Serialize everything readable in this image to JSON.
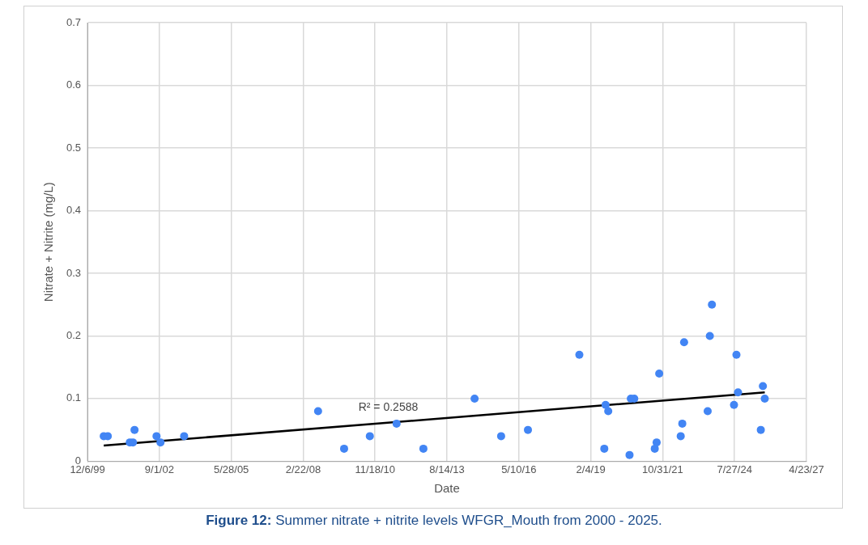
{
  "chart_data": {
    "type": "scatter",
    "xlabel": "Date",
    "ylabel": "Nitrate + Nitrite (mg/L)",
    "xlim": [
      "1999-12-06",
      "2027-04-23"
    ],
    "xticks": [
      {
        "value": "1999-12-06",
        "label": "12/6/99"
      },
      {
        "value": "2002-09-01",
        "label": "9/1/02"
      },
      {
        "value": "2005-05-28",
        "label": "5/28/05"
      },
      {
        "value": "2008-02-22",
        "label": "2/22/08"
      },
      {
        "value": "2010-11-18",
        "label": "11/18/10"
      },
      {
        "value": "2013-08-14",
        "label": "8/14/13"
      },
      {
        "value": "2016-05-10",
        "label": "5/10/16"
      },
      {
        "value": "2019-02-04",
        "label": "2/4/19"
      },
      {
        "value": "2021-10-31",
        "label": "10/31/21"
      },
      {
        "value": "2024-07-27",
        "label": "7/27/24"
      },
      {
        "value": "2027-04-23",
        "label": "4/23/27"
      }
    ],
    "ylim": [
      0,
      0.7
    ],
    "yticks": [
      0,
      0.1,
      0.2,
      0.3,
      0.4,
      0.5,
      0.6,
      0.7
    ],
    "grid": true,
    "legend": false,
    "marker": "circle",
    "series": [
      {
        "color": "#4285f4",
        "x": [
          "2000-07-19",
          "2000-09-13",
          "2001-07-16",
          "2001-08-29",
          "2001-09-20",
          "2002-07-23",
          "2002-09-16",
          "2003-08-11",
          "2008-09-16",
          "2009-09-13",
          "2010-09-06",
          "2011-09-13",
          "2012-09-20",
          "2014-09-02",
          "2015-09-06",
          "2016-09-13",
          "2018-08-29",
          "2019-08-11",
          "2019-08-29",
          "2019-10-05",
          "2020-07-27",
          "2020-08-14",
          "2020-10-01",
          "2021-07-13",
          "2021-08-08",
          "2021-09-13",
          "2022-07-09",
          "2022-07-31",
          "2022-08-25",
          "2023-07-19",
          "2023-08-18",
          "2023-09-16",
          "2024-07-19",
          "2024-08-22",
          "2024-09-13",
          "2025-07-27",
          "2025-08-25",
          "2025-09-20"
        ],
        "values": [
          0.04,
          0.04,
          0.03,
          0.03,
          0.05,
          0.04,
          0.03,
          0.04,
          0.08,
          0.02,
          0.04,
          0.06,
          0.02,
          0.1,
          0.04,
          0.05,
          0.17,
          0.02,
          0.09,
          0.08,
          0.01,
          0.1,
          0.1,
          0.02,
          0.03,
          0.14,
          0.04,
          0.06,
          0.19,
          0.08,
          0.2,
          0.25,
          0.09,
          0.17,
          0.11,
          0.05,
          0.12,
          0.1
        ]
      },
      {
        "type": "line",
        "color": "#000000",
        "marker": "none",
        "line_style": "solid",
        "x": [
          "2000-07-19",
          "2025-09-20"
        ],
        "values": [
          0.025,
          0.11
        ]
      }
    ],
    "annotations": [
      {
        "text": "R² = 0.2588",
        "x": "2011-05-20",
        "y": 0.066
      },
      "Figure 12: Summer nitrate + nitrite levels WFGR_Mouth from 2000 - 2025."
    ]
  }
}
